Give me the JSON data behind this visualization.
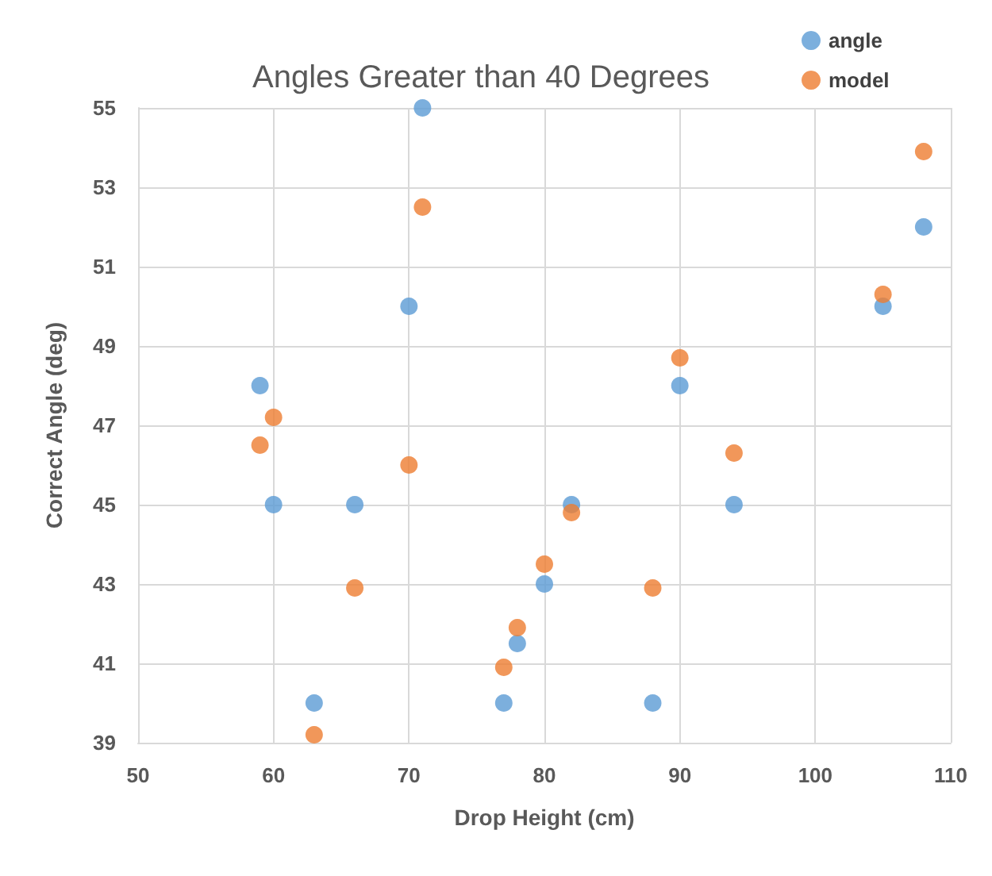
{
  "chart_data": {
    "type": "scatter",
    "title": "Angles Greater than 40 Degrees",
    "xlabel": "Drop Height (cm)",
    "ylabel": "Correct Angle (deg)",
    "x": [
      59,
      60,
      63,
      66,
      70,
      71,
      77,
      78,
      80,
      82,
      88,
      90,
      94,
      105,
      108
    ],
    "series": [
      {
        "name": "angle",
        "color": "#5b9bd5",
        "values": [
          48,
          45,
          40,
          45,
          50,
          55,
          40,
          41.5,
          43,
          45,
          40,
          48,
          45,
          50,
          52
        ]
      },
      {
        "name": "model",
        "color": "#ed7d31",
        "values": [
          46.5,
          47.2,
          39.2,
          42.9,
          46,
          52.5,
          40.9,
          41.9,
          43.5,
          44.8,
          42.9,
          48.7,
          46.3,
          50.3,
          53.9
        ]
      }
    ],
    "xlim": [
      50,
      110
    ],
    "xticks": [
      50,
      60,
      70,
      80,
      90,
      100,
      110
    ],
    "ylim": [
      39,
      55
    ],
    "yticks": [
      39,
      41,
      43,
      45,
      47,
      49,
      51,
      53,
      55
    ],
    "grid": true,
    "legend": "top right",
    "marker": "circle"
  }
}
